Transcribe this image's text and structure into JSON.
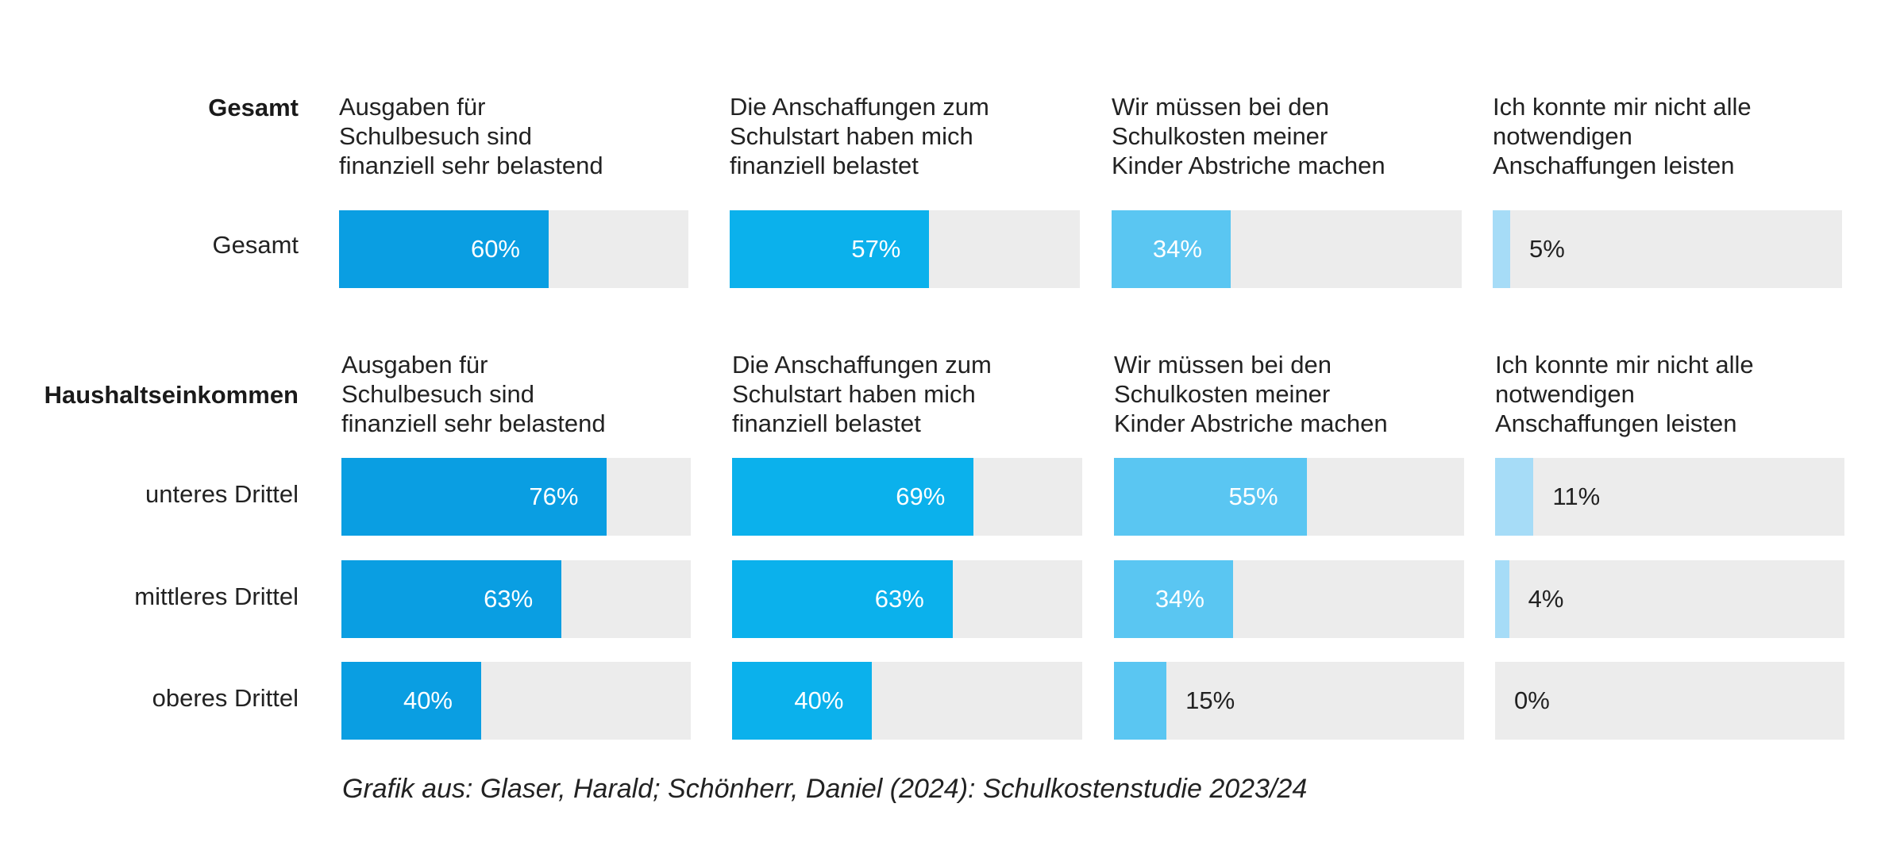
{
  "chart_data": {
    "type": "bar",
    "orientation": "horizontal",
    "scale": [
      0,
      100
    ],
    "unit": "%",
    "questions": [
      {
        "lines": [
          "Ausgaben für",
          "Schulbesuch sind",
          "finanziell sehr belastend"
        ],
        "color": "#0a9ee2"
      },
      {
        "lines": [
          "Die Anschaffungen zum",
          "Schulstart haben mich",
          "finanziell belastet"
        ],
        "color": "#0bb1ec"
      },
      {
        "lines": [
          "Wir müssen bei den",
          "Schulkosten meiner",
          "Kinder Abstriche machen"
        ],
        "color": "#5ac6f2"
      },
      {
        "lines": [
          "Ich konnte mir nicht alle",
          "notwendigen",
          "Anschaffungen leisten"
        ],
        "color": "#a6dcf7"
      }
    ],
    "groups": [
      {
        "title": "Gesamt",
        "rows": [
          {
            "label": "Gesamt",
            "values": [
              60,
              57,
              34,
              5
            ],
            "value_labels": [
              "60%",
              "57%",
              "34%",
              "5%"
            ]
          }
        ]
      },
      {
        "title": "Haushaltseinkommen",
        "rows": [
          {
            "label": "unteres Drittel",
            "values": [
              76,
              69,
              55,
              11
            ],
            "value_labels": [
              "76%",
              "69%",
              "55%",
              "11%"
            ]
          },
          {
            "label": "mittleres Drittel",
            "values": [
              63,
              63,
              34,
              4
            ],
            "value_labels": [
              "63%",
              "63%",
              "34%",
              "4%"
            ]
          },
          {
            "label": "oberes Drittel",
            "values": [
              40,
              40,
              15,
              0
            ],
            "value_labels": [
              "40%",
              "40%",
              "15%",
              "0%"
            ]
          }
        ]
      }
    ],
    "source": "Grafik aus: Glaser, Harald; Schönherr, Daniel (2024): Schulkostenstudie 2023/24"
  }
}
